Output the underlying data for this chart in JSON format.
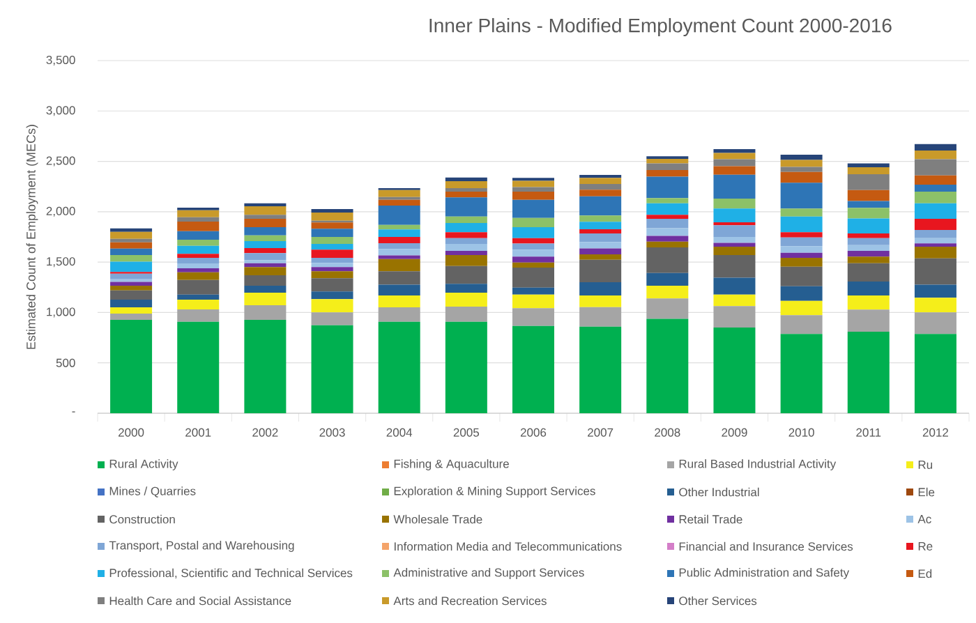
{
  "chart_data": {
    "type": "bar",
    "stacked": true,
    "title": "Inner Plains - Modified Employment Count 2000-2016",
    "ylabel": "Estimated Count of Employment (MECs)",
    "categories": [
      "2000",
      "2001",
      "2002",
      "2003",
      "2004",
      "2005",
      "2006",
      "2007",
      "2008",
      "2009",
      "2010",
      "2011",
      "2012"
    ],
    "ylim": [
      0,
      3500
    ],
    "yticks": [
      {
        "value": 0,
        "label": "-"
      },
      500,
      {
        "value": 1000,
        "label": "1,000"
      },
      {
        "value": 1500,
        "label": "1,500"
      },
      {
        "value": 2000,
        "label": "2,000"
      },
      {
        "value": 2500,
        "label": "2,500"
      },
      {
        "value": 3000,
        "label": "3,000"
      },
      {
        "value": 3500,
        "label": "3,500"
      }
    ],
    "grid": "y",
    "legend": "bottom",
    "series": [
      {
        "name": "Rural Activity",
        "color": "#00b050",
        "values": [
          927,
          908,
          927,
          874,
          908,
          908,
          867,
          860,
          938,
          851,
          786,
          809,
          786
        ]
      },
      {
        "name": "Fishing & Aquaculture",
        "color": "#ed7d31",
        "values": [
          null,
          null,
          null,
          null,
          null,
          null,
          null,
          null,
          null,
          null,
          null,
          null,
          null
        ]
      },
      {
        "name": "Rural Based Industrial Activity",
        "color": "#a5a5a5",
        "values": [
          62,
          122,
          145,
          127,
          143,
          150,
          175,
          193,
          201,
          212,
          187,
          219,
          215
        ]
      },
      {
        "name": "Ru",
        "color": "#f5ee1a",
        "values": [
          62,
          97,
          124,
          131,
          118,
          138,
          136,
          116,
          126,
          115,
          142,
          141,
          145
        ]
      },
      {
        "name": "Mines / Quarries",
        "color": "#4472c4",
        "values": [
          null,
          null,
          null,
          null,
          null,
          null,
          null,
          null,
          null,
          null,
          null,
          null,
          null
        ]
      },
      {
        "name": "Exploration & Mining Support Services",
        "color": "#70ad47",
        "values": [
          null,
          null,
          null,
          null,
          null,
          null,
          null,
          null,
          null,
          null,
          null,
          null,
          null
        ]
      },
      {
        "name": "Other Industrial",
        "color": "#255e91",
        "values": [
          76,
          51,
          69,
          76,
          108,
          88,
          69,
          131,
          127,
          168,
          146,
          138,
          131
        ]
      },
      {
        "name": "Ele",
        "color": "#9e480e",
        "values": [
          null,
          null,
          null,
          null,
          null,
          null,
          null,
          null,
          null,
          null,
          null,
          null,
          null
        ]
      },
      {
        "name": "Construction",
        "color": "#636363",
        "values": [
          92,
          145,
          104,
          132,
          132,
          177,
          198,
          224,
          254,
          224,
          193,
          182,
          260
        ]
      },
      {
        "name": "Wholesale Trade",
        "color": "#997300",
        "values": [
          46,
          76,
          81,
          69,
          122,
          109,
          51,
          53,
          57,
          83,
          88,
          65,
          116
        ]
      },
      {
        "name": "Retail Trade",
        "color": "#7030a0",
        "values": [
          39,
          39,
          39,
          41,
          35,
          41,
          58,
          58,
          58,
          39,
          51,
          57,
          33
        ]
      },
      {
        "name": "Ac",
        "color": "#9dc3e6",
        "values": [
          25,
          49,
          30,
          42,
          64,
          69,
          69,
          64,
          76,
          58,
          65,
          58,
          52
        ]
      },
      {
        "name": "Transport, Postal and Warehousing",
        "color": "#7fa6d6",
        "values": [
          56,
          55,
          70,
          50,
          57,
          58,
          62,
          85,
          92,
          115,
          87,
          69,
          81
        ]
      },
      {
        "name": "Information Media and Telecommunications",
        "color": "#f4a46a",
        "values": [
          null,
          null,
          null,
          null,
          null,
          null,
          null,
          null,
          null,
          null,
          null,
          null,
          null
        ]
      },
      {
        "name": "Financial and Insurance Services",
        "color": "#d47ec8",
        "values": [
          null,
          null,
          null,
          null,
          null,
          null,
          null,
          null,
          null,
          null,
          null,
          null,
          null
        ]
      },
      {
        "name": "Re",
        "color": "#e8161f",
        "values": [
          18,
          41,
          50,
          81,
          63,
          58,
          53,
          42,
          40,
          30,
          51,
          46,
          110
        ]
      },
      {
        "name": "Professional, Scientific and Technical Services",
        "color": "#1fb0e6",
        "values": [
          102,
          79,
          69,
          57,
          74,
          92,
          108,
          74,
          115,
          136,
          156,
          150,
          155
        ]
      },
      {
        "name": "Administrative and Support Services",
        "color": "#8cc168",
        "values": [
          65,
          60,
          58,
          70,
          45,
          64,
          93,
          62,
          51,
          99,
          79,
          104,
          115
        ]
      },
      {
        "name": "Public Administration and Safety",
        "color": "#2e75b6",
        "values": [
          64,
          85,
          81,
          81,
          192,
          190,
          179,
          191,
          214,
          237,
          256,
          69,
          69
        ]
      },
      {
        "name": "Ed",
        "color": "#c55a11",
        "values": [
          63,
          95,
          82,
          62,
          57,
          57,
          81,
          65,
          65,
          85,
          108,
          108,
          92
        ]
      },
      {
        "name": "Health Care and Social Assistance",
        "color": "#7f7f7f",
        "values": [
          34,
          44,
          40,
          18,
          28,
          35,
          46,
          57,
          65,
          69,
          50,
          157,
          161
        ]
      },
      {
        "name": "Arts and Recreation Services",
        "color": "#c99a2a",
        "values": [
          69,
          69,
          85,
          81,
          69,
          70,
          62,
          62,
          45,
          62,
          69,
          69,
          86
        ]
      },
      {
        "name": "Other Services",
        "color": "#264478",
        "values": [
          35,
          25,
          30,
          34,
          19,
          36,
          30,
          28,
          26,
          38,
          53,
          39,
          65
        ]
      }
    ]
  }
}
